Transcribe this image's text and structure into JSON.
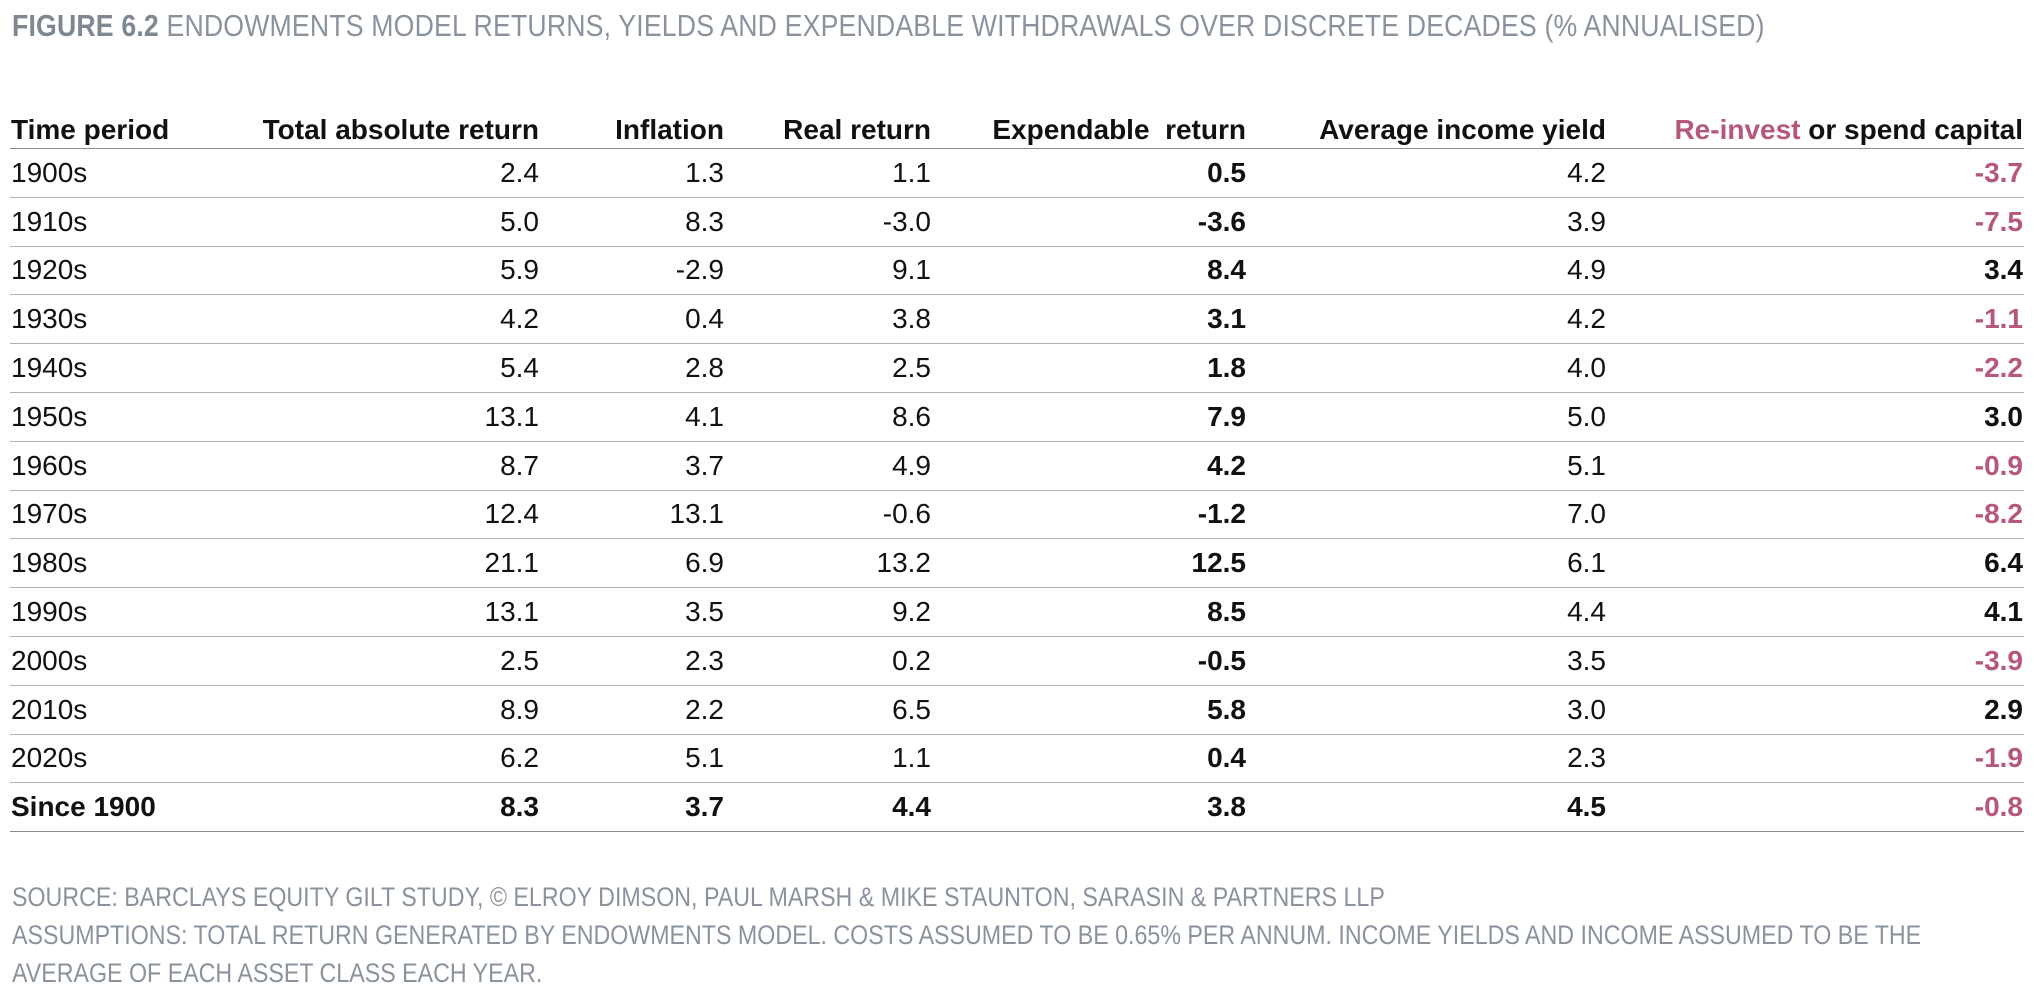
{
  "figure": {
    "label": "FIGURE 6.2",
    "title": "ENDOWMENTS MODEL RETURNS, YIELDS AND EXPENDABLE WITHDRAWALS OVER DISCRETE DECADES (% ANNUALISED)"
  },
  "table": {
    "headers": {
      "period": "Time period",
      "total": "Total absolute return",
      "inflation": "Inflation",
      "real": "Real return",
      "expendable": "Expendable  return",
      "yield": "Average income yield",
      "reinvest_accent": "Re-invest",
      "reinvest_rest": " or spend capital"
    },
    "rows": [
      {
        "period": "1900s",
        "total": "2.4",
        "inflation": "1.3",
        "real": "1.1",
        "expendable": "0.5",
        "yield": "4.2",
        "reinvest": "-3.7"
      },
      {
        "period": "1910s",
        "total": "5.0",
        "inflation": "8.3",
        "real": "-3.0",
        "expendable": "-3.6",
        "yield": "3.9",
        "reinvest": "-7.5"
      },
      {
        "period": "1920s",
        "total": "5.9",
        "inflation": "-2.9",
        "real": "9.1",
        "expendable": "8.4",
        "yield": "4.9",
        "reinvest": "3.4"
      },
      {
        "period": "1930s",
        "total": "4.2",
        "inflation": "0.4",
        "real": "3.8",
        "expendable": "3.1",
        "yield": "4.2",
        "reinvest": "-1.1"
      },
      {
        "period": "1940s",
        "total": "5.4",
        "inflation": "2.8",
        "real": "2.5",
        "expendable": "1.8",
        "yield": "4.0",
        "reinvest": "-2.2"
      },
      {
        "period": "1950s",
        "total": "13.1",
        "inflation": "4.1",
        "real": "8.6",
        "expendable": "7.9",
        "yield": "5.0",
        "reinvest": "3.0"
      },
      {
        "period": "1960s",
        "total": "8.7",
        "inflation": "3.7",
        "real": "4.9",
        "expendable": "4.2",
        "yield": "5.1",
        "reinvest": "-0.9"
      },
      {
        "period": "1970s",
        "total": "12.4",
        "inflation": "13.1",
        "real": "-0.6",
        "expendable": "-1.2",
        "yield": "7.0",
        "reinvest": "-8.2"
      },
      {
        "period": "1980s",
        "total": "21.1",
        "inflation": "6.9",
        "real": "13.2",
        "expendable": "12.5",
        "yield": "6.1",
        "reinvest": "6.4"
      },
      {
        "period": "1990s",
        "total": "13.1",
        "inflation": "3.5",
        "real": "9.2",
        "expendable": "8.5",
        "yield": "4.4",
        "reinvest": "4.1"
      },
      {
        "period": "2000s",
        "total": "2.5",
        "inflation": "2.3",
        "real": "0.2",
        "expendable": "-0.5",
        "yield": "3.5",
        "reinvest": "-3.9"
      },
      {
        "period": "2010s",
        "total": "8.9",
        "inflation": "2.2",
        "real": "6.5",
        "expendable": "5.8",
        "yield": "3.0",
        "reinvest": "2.9"
      },
      {
        "period": "2020s",
        "total": "6.2",
        "inflation": "5.1",
        "real": "1.1",
        "expendable": "0.4",
        "yield": "2.3",
        "reinvest": "-1.9"
      }
    ],
    "total_row": {
      "period": "Since 1900",
      "total": "8.3",
      "inflation": "3.7",
      "real": "4.4",
      "expendable": "3.8",
      "yield": "4.5",
      "reinvest": "-0.8"
    }
  },
  "notes": {
    "source": "SOURCE: BARCLAYS EQUITY GILT STUDY, © ELROY DIMSON, PAUL MARSH & MIKE STAUNTON, SARASIN & PARTNERS LLP",
    "assumptions_line1": "ASSUMPTIONS: TOTAL RETURN GENERATED BY ENDOWMENTS MODEL. COSTS ASSUMED TO BE 0.65% PER ANNUM. INCOME YIELDS AND INCOME ASSUMED TO BE THE",
    "assumptions_line2": "AVERAGE OF EACH ASSET CLASS EACH YEAR."
  },
  "colors": {
    "accent": "#b5577f",
    "muted_text": "#8a939d",
    "rule": "#b0b0b0"
  }
}
